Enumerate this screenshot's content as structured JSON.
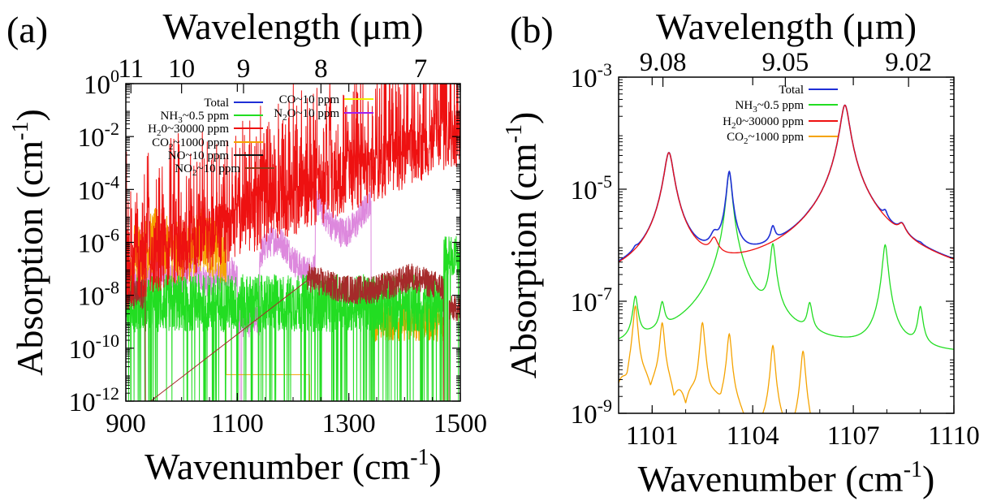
{
  "chart_data": [
    {
      "panel": "(a)",
      "type": "line",
      "xlabel": "Wavenumber (cm",
      "xlabel_sup": "-1",
      "xlabel_end": ")",
      "ylabel": "Absorption (cm",
      "ylabel_sup": "-1",
      "ylabel_end": ")",
      "top_axis_label": "Wavelength (μm)",
      "xlim": [
        900,
        1500
      ],
      "ylim_log10": [
        -12,
        0
      ],
      "y_scale": "log",
      "x_ticks": [
        "900",
        "1100",
        "1300",
        "1500"
      ],
      "x_tick_values": [
        900,
        1100,
        1300,
        1500
      ],
      "y_ticks": [
        {
          "exp": -12,
          "base": "10",
          "sup": "-12"
        },
        {
          "exp": -10,
          "base": "10",
          "sup": "-10"
        },
        {
          "exp": -8,
          "base": "10",
          "sup": "-8"
        },
        {
          "exp": -6,
          "base": "10",
          "sup": "-6"
        },
        {
          "exp": -4,
          "base": "10",
          "sup": "-4"
        },
        {
          "exp": -2,
          "base": "10",
          "sup": "-2"
        },
        {
          "exp": 0,
          "base": "10",
          "sup": "0"
        }
      ],
      "top_ticks": [
        {
          "label": "11",
          "um": 11
        },
        {
          "label": "10",
          "um": 10
        },
        {
          "label": "9",
          "um": 9
        },
        {
          "label": "8",
          "um": 8
        },
        {
          "label": "7",
          "um": 7
        }
      ],
      "legend_placement": "top",
      "series": [
        {
          "name": "Total",
          "color": "#1f2fd6",
          "sub": null,
          "label_pre": "Total",
          "label_post": ""
        },
        {
          "name": "NH3~0.5 ppm",
          "color": "#22dd22",
          "label_pre": "NH",
          "sub": "3",
          "label_post": "~0.5 ppm"
        },
        {
          "name": "H2O~30000 ppm",
          "color": "#ee1111",
          "label_pre": "H",
          "sub": "2",
          "label_post": "0~30000 ppm"
        },
        {
          "name": "CO2~1000 ppm",
          "color": "#f5a300",
          "label_pre": "CO",
          "sub": "2",
          "label_post": "~1000 ppm"
        },
        {
          "name": "NO~10 ppm",
          "color": "#111111",
          "sub": null,
          "label_pre": "NO~10 ppm",
          "label_post": ""
        },
        {
          "name": "NO2~10 ppm",
          "color": "#8b3a1a",
          "label_pre": "NO",
          "sub": "2",
          "label_post": "~10 ppm"
        },
        {
          "name": "CO~10 ppm",
          "color": "#f0f000",
          "sub": null,
          "label_pre": "CO~10 ppm",
          "label_post": ""
        },
        {
          "name": "N2O~10 ppm",
          "color": "#a020f0",
          "label_pre": "N",
          "sub": "2",
          "label_post": "O~10 ppm"
        }
      ]
    },
    {
      "panel": "(b)",
      "type": "line",
      "xlabel": "Wavenumber (cm",
      "xlabel_sup": "-1",
      "xlabel_end": ")",
      "ylabel": "Absorption (cm",
      "ylabel_sup": "-1",
      "ylabel_end": ")",
      "top_axis_label": "Wavelength (μm)",
      "xlim": [
        1100,
        1110
      ],
      "ylim_log10": [
        -9,
        -3
      ],
      "y_scale": "log",
      "x_ticks": [
        "1101",
        "1104",
        "1107",
        "1110"
      ],
      "x_tick_values": [
        1101,
        1104,
        1107,
        1110
      ],
      "y_ticks": [
        {
          "exp": -9,
          "base": "10",
          "sup": "-9"
        },
        {
          "exp": -7,
          "base": "10",
          "sup": "-7"
        },
        {
          "exp": -5,
          "base": "10",
          "sup": "-5"
        },
        {
          "exp": -3,
          "base": "10",
          "sup": "-3"
        }
      ],
      "top_ticks": [
        {
          "label": "9.08",
          "um": 9.08
        },
        {
          "label": "9.05",
          "um": 9.05
        },
        {
          "label": "9.02",
          "um": 9.02
        }
      ],
      "legend_placement": "top-center",
      "series": [
        {
          "name": "Total",
          "color": "#1f2fd6",
          "sub": null,
          "label_pre": "Total",
          "label_post": ""
        },
        {
          "name": "NH3~0.5 ppm",
          "color": "#22dd22",
          "label_pre": "NH",
          "sub": "3",
          "label_post": "~0.5 ppm"
        },
        {
          "name": "H2O~30000 ppm",
          "color": "#ee1111",
          "label_pre": "H",
          "sub": "2",
          "label_post": "0~30000 ppm"
        },
        {
          "name": "CO2~1000 ppm",
          "color": "#f5a300",
          "label_pre": "CO",
          "sub": "2",
          "label_post": "~1000 ppm"
        }
      ],
      "peaks": {
        "H2O": [
          {
            "x": 1101.5,
            "log10_y": -4.35
          },
          {
            "x": 1102.85,
            "log10_y": -6.2
          },
          {
            "x": 1106.75,
            "log10_y": -3.5
          },
          {
            "x": 1108.45,
            "log10_y": -6.1
          }
        ],
        "NH3": [
          {
            "x": 1100.5,
            "log10_y": -7.0
          },
          {
            "x": 1101.3,
            "log10_y": -7.2
          },
          {
            "x": 1103.3,
            "log10_y": -4.7
          },
          {
            "x": 1104.6,
            "log10_y": -6.0
          },
          {
            "x": 1105.7,
            "log10_y": -7.2
          },
          {
            "x": 1107.95,
            "log10_y": -6.0
          },
          {
            "x": 1109.0,
            "log10_y": -7.2
          }
        ],
        "CO2": [
          {
            "x": 1100.5,
            "log10_y": -7.1
          },
          {
            "x": 1101.3,
            "log10_y": -7.4
          },
          {
            "x": 1102.5,
            "log10_y": -7.4
          },
          {
            "x": 1103.3,
            "log10_y": -7.6
          },
          {
            "x": 1104.6,
            "log10_y": -7.8
          },
          {
            "x": 1105.5,
            "log10_y": -7.9
          }
        ]
      }
    }
  ],
  "panel_labels": [
    "(a)",
    "(b)"
  ]
}
